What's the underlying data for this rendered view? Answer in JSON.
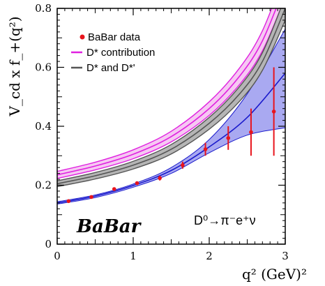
{
  "chart_data": {
    "type": "line",
    "xlabel": "q² (GeV)²",
    "ylabel": "V_cd x f_+(q²)",
    "xlim": [
      0,
      3
    ],
    "ylim": [
      0,
      0.8
    ],
    "x_ticks": [
      "0",
      "1",
      "2",
      "3"
    ],
    "y_ticks": [
      "0",
      "0.2",
      "0.4",
      "0.6",
      "0.8"
    ],
    "legend_position": "top-left",
    "logo": "BaBar",
    "annotation": "D⁰→π⁻e⁺ν",
    "colors": {
      "data": "#e8141c",
      "pink": "#e020e0",
      "gray": "#555555",
      "blue": "#1a1acc",
      "blue_fill": "#9a9aee"
    },
    "series": [
      {
        "name": "BaBar data",
        "kind": "points",
        "x": [
          0.15,
          0.45,
          0.75,
          1.05,
          1.35,
          1.65,
          1.95,
          2.25,
          2.55,
          2.85
        ],
        "y": [
          0.146,
          0.16,
          0.187,
          0.207,
          0.224,
          0.268,
          0.322,
          0.36,
          0.38,
          0.45
        ],
        "yerr": [
          0.004,
          0.004,
          0.005,
          0.006,
          0.008,
          0.012,
          0.022,
          0.04,
          0.08,
          0.15
        ]
      },
      {
        "name": "D* contribution",
        "kind": "band",
        "x": [
          0,
          0.5,
          1.0,
          1.5,
          2.0,
          2.4,
          2.7,
          3.0
        ],
        "center": [
          0.235,
          0.265,
          0.305,
          0.365,
          0.46,
          0.57,
          0.69,
          0.88
        ],
        "halfwidth": [
          0.012,
          0.013,
          0.015,
          0.018,
          0.023,
          0.028,
          0.034,
          0.043
        ]
      },
      {
        "name": "D* and D*'",
        "kind": "band",
        "x": [
          0,
          0.5,
          1.0,
          1.5,
          2.0,
          2.4,
          2.7,
          3.0
        ],
        "center": [
          0.205,
          0.232,
          0.268,
          0.322,
          0.41,
          0.51,
          0.62,
          0.8
        ],
        "halfwidth": [
          0.01,
          0.011,
          0.013,
          0.016,
          0.02,
          0.025,
          0.03,
          0.04
        ]
      },
      {
        "name": "",
        "kind": "band",
        "x": [
          0,
          0.5,
          1.0,
          1.5,
          2.0,
          2.5,
          3.0
        ],
        "center": [
          0.14,
          0.163,
          0.199,
          0.25,
          0.33,
          0.43,
          0.58
        ],
        "upper": [
          0.144,
          0.167,
          0.204,
          0.26,
          0.355,
          0.51,
          0.73
        ],
        "lower": [
          0.136,
          0.158,
          0.193,
          0.24,
          0.31,
          0.37,
          0.395
        ]
      }
    ]
  }
}
